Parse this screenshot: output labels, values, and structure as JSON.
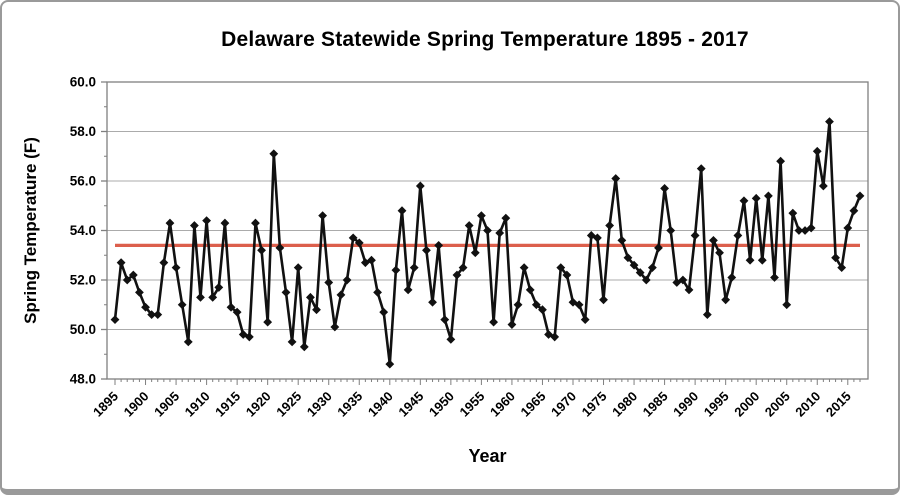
{
  "chart_data": {
    "type": "line",
    "title": "Delaware Statewide Spring Temperature 1895 - 2017",
    "xlabel": "Year",
    "ylabel": "Spring Temperature (F)",
    "legend": "none",
    "grid": "horizontal",
    "ylim": [
      48.0,
      60.0
    ],
    "ytick_step": 2.0,
    "ytick_labels": [
      "48.0",
      "50.0",
      "52.0",
      "54.0",
      "56.0",
      "58.0",
      "60.0"
    ],
    "xtick_labels": [
      "1895",
      "1900",
      "1905",
      "1910",
      "1915",
      "1920",
      "1925",
      "1930",
      "1935",
      "1940",
      "1945",
      "1950",
      "1955",
      "1960",
      "1965",
      "1970",
      "1975",
      "1980",
      "1985",
      "1990",
      "1995",
      "2000",
      "2005",
      "2010",
      "2015"
    ],
    "mean_line": {
      "value": 53.4,
      "color": "#DC5F4C"
    },
    "series": [
      {
        "name": "Spring Temperature",
        "color": "#111111",
        "marker": "diamond",
        "x_start": 1895,
        "x_step": 1,
        "x_end": 2017,
        "values": [
          50.4,
          52.7,
          52.0,
          52.2,
          51.5,
          50.9,
          50.6,
          50.6,
          52.7,
          54.3,
          52.5,
          51.0,
          49.5,
          54.2,
          51.3,
          54.4,
          51.3,
          51.7,
          54.3,
          50.9,
          50.7,
          49.8,
          49.7,
          54.3,
          53.2,
          50.3,
          57.1,
          53.3,
          51.5,
          49.5,
          52.5,
          49.3,
          51.3,
          50.8,
          54.6,
          51.9,
          50.1,
          51.4,
          52.0,
          53.7,
          53.5,
          52.7,
          52.8,
          51.5,
          50.7,
          48.6,
          52.4,
          54.8,
          51.6,
          52.5,
          55.8,
          53.2,
          51.1,
          53.4,
          50.4,
          49.6,
          52.2,
          52.5,
          54.2,
          53.1,
          54.6,
          54.0,
          50.3,
          53.9,
          54.5,
          50.2,
          51.0,
          52.5,
          51.6,
          51.0,
          50.8,
          49.8,
          49.7,
          52.5,
          52.2,
          51.1,
          51.0,
          50.4,
          53.8,
          53.7,
          51.2,
          54.2,
          56.1,
          53.6,
          52.9,
          52.6,
          52.3,
          52.0,
          52.5,
          53.3,
          55.7,
          54.0,
          51.9,
          52.0,
          51.6,
          53.8,
          56.5,
          50.6,
          53.6,
          53.1,
          51.2,
          52.1,
          53.8,
          55.2,
          52.8,
          55.3,
          52.8,
          55.4,
          52.1,
          56.8,
          51.0,
          54.7,
          54.0,
          54.0,
          54.1,
          57.2,
          55.8,
          58.4,
          52.9,
          52.5,
          54.1,
          54.8,
          55.4
        ]
      }
    ]
  }
}
